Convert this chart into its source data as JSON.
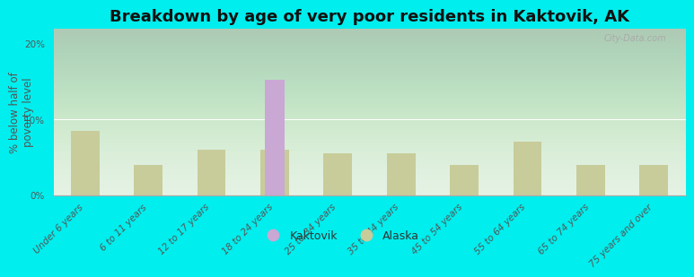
{
  "title": "Breakdown by age of very poor residents in Kaktovik, AK",
  "ylabel": "% below half of\npoverty level",
  "categories": [
    "Under 6 years",
    "6 to 11 years",
    "12 to 17 years",
    "18 to 24 years",
    "25 to 34 years",
    "35 to 44 years",
    "45 to 54 years",
    "55 to 64 years",
    "65 to 74 years",
    "75 years and over"
  ],
  "kaktovik_values": [
    0,
    0,
    0,
    15.2,
    0,
    0,
    0,
    0,
    0,
    0
  ],
  "alaska_values": [
    8.5,
    4.0,
    6.0,
    6.0,
    5.5,
    5.5,
    4.0,
    7.0,
    4.0,
    4.0
  ],
  "kaktovik_color": "#c9a8d4",
  "alaska_color": "#c8cc9a",
  "background_color": "#00eeee",
  "bar_width": 0.45,
  "ylim": [
    0,
    22
  ],
  "yticks": [
    0,
    10,
    20
  ],
  "ytick_labels": [
    "0%",
    "10%",
    "20%"
  ],
  "title_fontsize": 13,
  "axis_label_fontsize": 8.5,
  "tick_fontsize": 7.5,
  "legend_fontsize": 9,
  "watermark": "City-Data.com"
}
